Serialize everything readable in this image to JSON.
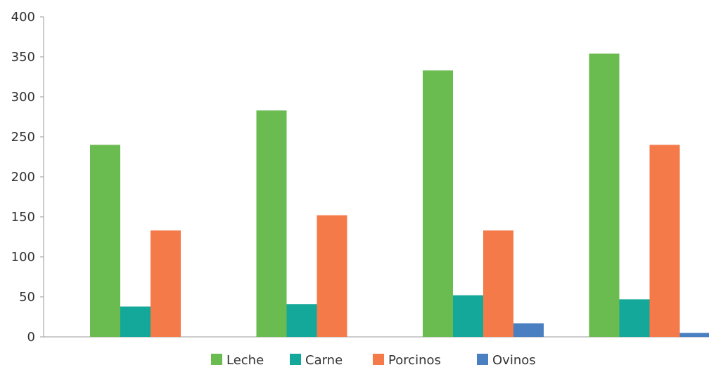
{
  "chart_data": {
    "type": "bar",
    "title": "",
    "xlabel": "",
    "ylabel": "",
    "categories": [
      "",
      "",
      "",
      ""
    ],
    "ylim": [
      0,
      400
    ],
    "yticks": [
      0,
      50,
      100,
      150,
      200,
      250,
      300,
      350,
      400
    ],
    "grid": false,
    "legend_position": "bottom",
    "series": [
      {
        "name": "Leche",
        "color": "#6abb50",
        "values": [
          240,
          283,
          333,
          354
        ]
      },
      {
        "name": "Carne",
        "color": "#14a89a",
        "values": [
          38,
          41,
          52,
          47
        ]
      },
      {
        "name": "Porcinos",
        "color": "#f47a4a",
        "values": [
          133,
          152,
          133,
          240
        ]
      },
      {
        "name": "Ovinos",
        "color": "#4a7fc1",
        "values": [
          0,
          0,
          17,
          5
        ]
      }
    ]
  }
}
